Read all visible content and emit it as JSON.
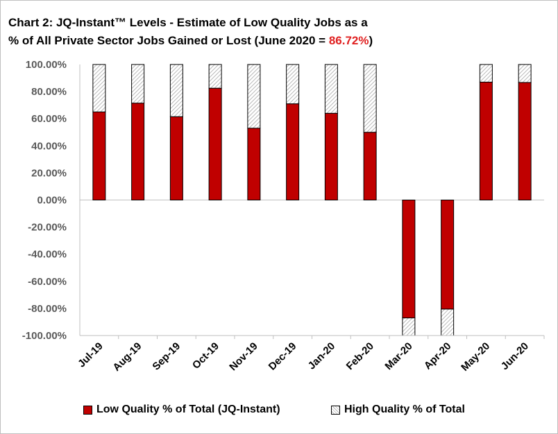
{
  "title": {
    "line1": "Chart 2: JQ-Instant™ Levels - Estimate of Low Quality Jobs as a",
    "line2_prefix": "% of All Private Sector Jobs Gained or Lost (June 2020",
    "line2_eq": " = ",
    "line2_value": "86.72%",
    "line2_suffix": ")",
    "highlight_color": "#e02020"
  },
  "colors": {
    "low": "#c00000",
    "high_pattern": "#b8b8b8",
    "axis": "#595959"
  },
  "chart_data": {
    "type": "bar",
    "stacked": true,
    "categories": [
      "Jul-19",
      "Aug-19",
      "Sep-19",
      "Oct-19",
      "Nov-19",
      "Dec-19",
      "Jan-20",
      "Feb-20",
      "Mar-20",
      "Apr-20",
      "May-20",
      "Jun-20"
    ],
    "series": [
      {
        "name": "Low Quality % of Total (JQ-Instant)",
        "values": [
          65,
          71.5,
          61.5,
          82.5,
          53,
          71,
          64,
          50,
          -87,
          -80.5,
          87,
          86.72
        ]
      },
      {
        "name": "High Quality % of Total",
        "values": [
          35,
          28.5,
          38.5,
          17.5,
          47,
          29,
          36,
          50,
          -13,
          -19.5,
          13,
          13.28
        ]
      }
    ],
    "y_ticks": [
      "100.00%",
      "80.00%",
      "60.00%",
      "40.00%",
      "20.00%",
      "0.00%",
      "-20.00%",
      "-40.00%",
      "-60.00%",
      "-80.00%",
      "-100.00%"
    ],
    "ylim": [
      -100,
      100
    ],
    "grid": false,
    "legend_position": "bottom"
  },
  "legend": {
    "low_label": "Low Quality % of Total (JQ-Instant)",
    "high_label": "High Quality % of Total"
  }
}
